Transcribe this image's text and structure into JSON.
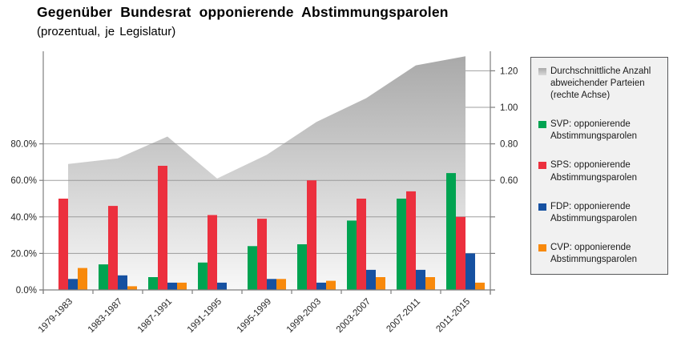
{
  "title": "Gegenüber Bundesrat opponierende Abstimmungsparolen",
  "subtitle": "(prozentual, je Legislatur)",
  "legend": {
    "items": [
      {
        "label": "Durchschnittliche Anzahl abweichender Parteien (rechte Achse)",
        "swatch": "gray-area"
      },
      {
        "label": "SVP: opponierende Abstimmungsparolen",
        "swatch": "#00a351"
      },
      {
        "label": "SPS: opponierende Abstimmungsparolen",
        "swatch": "#ec303e"
      },
      {
        "label": "FDP: opponierende Abstimmungsparolen",
        "swatch": "#1651a1"
      },
      {
        "label": "CVP: opponierende Abstimmungsparolen",
        "swatch": "#f8890b"
      }
    ]
  },
  "chart_data": {
    "type": "bar",
    "subtype": "grouped-bars-with-area-overlay",
    "categories": [
      "1979-1983",
      "1983-1987",
      "1987-1991",
      "1991-1995",
      "1995-1999",
      "1999-2003",
      "2003-2007",
      "2007-2011",
      "2011-2015"
    ],
    "series": [
      {
        "name": "SVP: opponierende Abstimmungsparolen",
        "type": "bar",
        "axis": "left",
        "color": "#00a351",
        "values": [
          0,
          14,
          7,
          15,
          24,
          25,
          38,
          50,
          64
        ]
      },
      {
        "name": "SPS: opponierende Abstimmungsparolen",
        "type": "bar",
        "axis": "left",
        "color": "#ec303e",
        "values": [
          50,
          46,
          68,
          41,
          39,
          60,
          50,
          54,
          40
        ]
      },
      {
        "name": "FDP: opponierende Abstimmungsparolen",
        "type": "bar",
        "axis": "left",
        "color": "#1651a1",
        "values": [
          6,
          8,
          4,
          4,
          6,
          4,
          11,
          11,
          20
        ]
      },
      {
        "name": "CVP: opponierende Abstimmungsparolen",
        "type": "bar",
        "axis": "left",
        "color": "#f8890b",
        "values": [
          12,
          2,
          4,
          0,
          6,
          5,
          7,
          7,
          4
        ]
      },
      {
        "name": "Durchschnittliche Anzahl abweichender Parteien (rechte Achse)",
        "type": "area",
        "axis": "right",
        "color_top": "#a9a9a9",
        "color_bottom": "#f8f8f8",
        "values": [
          0.69,
          0.72,
          0.84,
          0.61,
          0.74,
          0.92,
          1.05,
          1.23,
          1.28
        ]
      }
    ],
    "left_axis": {
      "tick_labels": [
        "0.0%",
        "20.0%",
        "40.0%",
        "60.0%",
        "80.0%"
      ],
      "tick_values": [
        0,
        20,
        40,
        60,
        80
      ],
      "min": 0,
      "unit": "%"
    },
    "right_axis": {
      "tick_labels": [
        "0.60",
        "0.80",
        "1.00",
        "1.20"
      ],
      "tick_values": [
        0.6,
        0.8,
        1.0,
        1.2
      ],
      "min": 0
    },
    "grid": "horizontal",
    "legend_position": "right",
    "gridline_color": "#8f8f8f",
    "axis_color": "#7f7f7f",
    "tick_text_color": "#262626"
  }
}
